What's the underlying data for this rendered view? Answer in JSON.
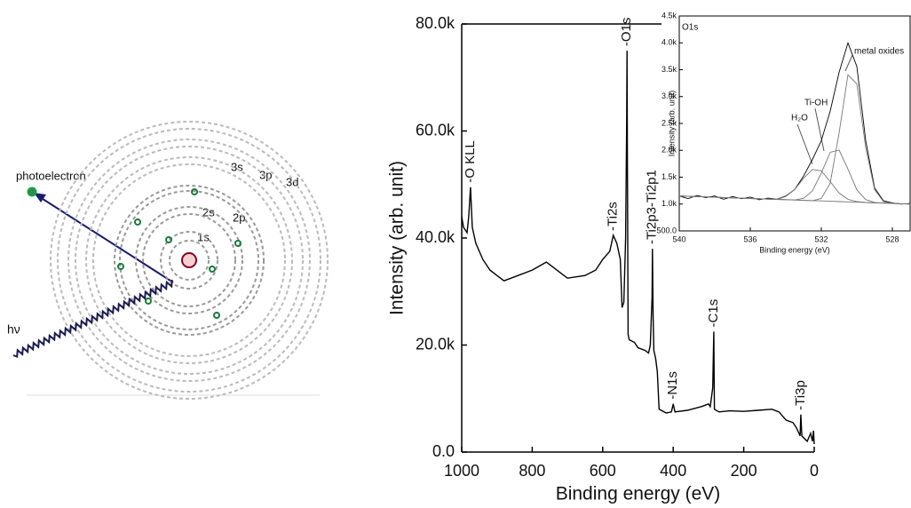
{
  "diagram": {
    "photoelectron_label": "photoelectron",
    "photon_label": "hν",
    "shells": [
      "1s",
      "2s",
      "2p",
      "3s",
      "3p",
      "3d"
    ]
  },
  "chart_data": [
    {
      "type": "line",
      "xlabel": "Binding energy (eV)",
      "ylabel": "Intensity (arb. unit)",
      "xlim": [
        1000,
        0
      ],
      "xticks": [
        1000,
        800,
        600,
        400,
        200,
        0
      ],
      "ylim": [
        0,
        80000
      ],
      "yticks": [
        {
          "value": 0,
          "label": "0.0"
        },
        {
          "value": 20000,
          "label": "20.0k"
        },
        {
          "value": 40000,
          "label": "40.0k"
        },
        {
          "value": 60000,
          "label": "60.0k"
        },
        {
          "value": 80000,
          "label": "80.0k"
        }
      ],
      "x": [
        1000,
        995,
        985,
        980,
        975,
        970,
        960,
        940,
        920,
        900,
        880,
        860,
        840,
        800,
        760,
        740,
        700,
        650,
        620,
        600,
        580,
        570,
        560,
        550,
        545,
        540,
        535,
        532,
        531,
        530,
        528,
        525,
        510,
        500,
        480,
        470,
        465,
        460,
        459,
        457,
        455,
        450,
        445,
        440,
        420,
        405,
        400,
        395,
        360,
        320,
        300,
        295,
        288,
        285,
        283,
        270,
        240,
        200,
        160,
        120,
        100,
        80,
        60,
        50,
        40,
        38,
        35,
        20,
        10,
        5,
        2,
        0
      ],
      "series": [
        {
          "color": "#000000",
          "values": [
            44000,
            42000,
            41000,
            44000,
            49500,
            42000,
            39000,
            36000,
            34000,
            33000,
            32000,
            32500,
            33000,
            34000,
            35500,
            34500,
            32500,
            33000,
            34000,
            36000,
            37500,
            40500,
            39000,
            36000,
            27000,
            28000,
            40000,
            62000,
            75000,
            55000,
            22000,
            21000,
            20500,
            19500,
            19000,
            18500,
            20000,
            29000,
            38000,
            25000,
            19000,
            17500,
            15000,
            8000,
            7300,
            7500,
            9000,
            7500,
            7800,
            8500,
            9000,
            8500,
            12000,
            22500,
            8000,
            7500,
            7700,
            7600,
            7800,
            8000,
            7500,
            6000,
            5500,
            4500,
            3000,
            7000,
            3000,
            2000,
            3500,
            2000,
            4000,
            1500
          ]
        }
      ],
      "annotations": [
        {
          "text": "-O KLL",
          "x": 975
        },
        {
          "text": "-O1s",
          "x": 531
        },
        {
          "text": "-Ti2s",
          "x": 570
        },
        {
          "text": "-Ti2p3-Ti2p1",
          "x": 459
        },
        {
          "text": "-N1s",
          "x": 400
        },
        {
          "text": "-C1s",
          "x": 285
        },
        {
          "text": "-Ti3p",
          "x": 38
        }
      ]
    },
    {
      "type": "line",
      "title": "O1s",
      "xlabel": "Binding energy (eV)",
      "ylabel": "Intensity (arb. unit)",
      "xlim": [
        540,
        527
      ],
      "xticks": [
        540,
        536,
        532,
        528
      ],
      "ylim": [
        500,
        4500
      ],
      "yticks": [
        {
          "value": 500,
          "label": "500.0"
        },
        {
          "value": 1000,
          "label": "1.0k"
        },
        {
          "value": 1500,
          "label": "1.5k"
        },
        {
          "value": 2000,
          "label": "2.0k"
        },
        {
          "value": 2500,
          "label": "2.5k"
        },
        {
          "value": 3000,
          "label": "3.0k"
        },
        {
          "value": 3500,
          "label": "3.5k"
        },
        {
          "value": 4000,
          "label": "4.0k"
        },
        {
          "value": 4500,
          "label": "4.5k"
        }
      ],
      "x": [
        540,
        539.5,
        539,
        538.5,
        538,
        537.5,
        537,
        536.5,
        536,
        535.5,
        535,
        534.5,
        534,
        533.5,
        533,
        532.5,
        532,
        531.5,
        531,
        530.5,
        530,
        529.5,
        529,
        528.5,
        528,
        527.5,
        527
      ],
      "series": [
        {
          "color": "#000000",
          "values": [
            1150,
            1100,
            1160,
            1120,
            1150,
            1090,
            1140,
            1100,
            1130,
            1080,
            1110,
            1090,
            1150,
            1270,
            1520,
            1830,
            2180,
            2730,
            3450,
            4000,
            3560,
            2180,
            1300,
            1060,
            1020,
            1000,
            1010
          ]
        },
        {
          "color": "#777777",
          "values": [
            1150,
            1144,
            1138,
            1133,
            1127,
            1121,
            1115,
            1110,
            1104,
            1098,
            1092,
            1087,
            1141,
            1270,
            1479,
            1643,
            1618,
            1417,
            1206,
            1088,
            1045,
            1029,
            1023,
            1017,
            1012,
            1006,
            1000
          ]
        },
        {
          "color": "#777777",
          "values": [
            1150,
            1144,
            1138,
            1133,
            1127,
            1121,
            1115,
            1110,
            1104,
            1098,
            1092,
            1087,
            1081,
            1075,
            1106,
            1243,
            1578,
            1962,
            2006,
            1650,
            1265,
            1084,
            1030,
            1017,
            1012,
            1006,
            1000
          ]
        },
        {
          "color": "#777777",
          "values": [
            1150,
            1144,
            1138,
            1133,
            1127,
            1121,
            1115,
            1110,
            1104,
            1098,
            1092,
            1087,
            1081,
            1075,
            1069,
            1063,
            1103,
            1390,
            2321,
            3405,
            3235,
            2050,
            1269,
            1046,
            1012,
            1006,
            1000
          ]
        },
        {
          "color": "#777777",
          "values": [
            1150,
            1144,
            1138,
            1133,
            1127,
            1121,
            1115,
            1110,
            1104,
            1098,
            1092,
            1087,
            1081,
            1075,
            1069,
            1063,
            1058,
            1052,
            1046,
            1040,
            1035,
            1029,
            1023,
            1017,
            1012,
            1006,
            1000
          ]
        }
      ],
      "annotations": [
        {
          "text": "metal oxides"
        },
        {
          "text": "Ti-OH"
        },
        {
          "text": "H₂O"
        }
      ]
    }
  ]
}
